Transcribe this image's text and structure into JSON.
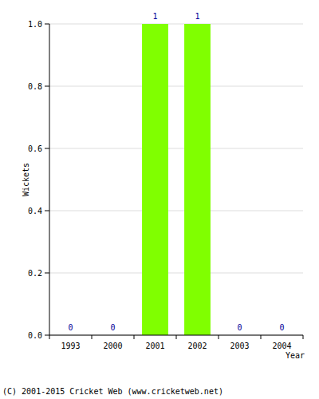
{
  "chart_data": {
    "type": "bar",
    "y_label": "Wickets",
    "x_label": "Year",
    "annotations": [
      "(C) 2001-2015 Cricket Web (www.cricketweb.net)"
    ],
    "categories": [
      "1993",
      "2000",
      "2001",
      "2002",
      "2003",
      "2004"
    ],
    "values": [
      0,
      0,
      1,
      1,
      0,
      0
    ],
    "color": "#80ff00",
    "ylim": [
      0,
      1
    ],
    "yticks": [
      {
        "value": 0,
        "label": "0.0"
      },
      0.2,
      0.4,
      0.6,
      0.8,
      {
        "value": 1,
        "label": "1.0"
      }
    ],
    "grid": true,
    "data_labels": true
  }
}
